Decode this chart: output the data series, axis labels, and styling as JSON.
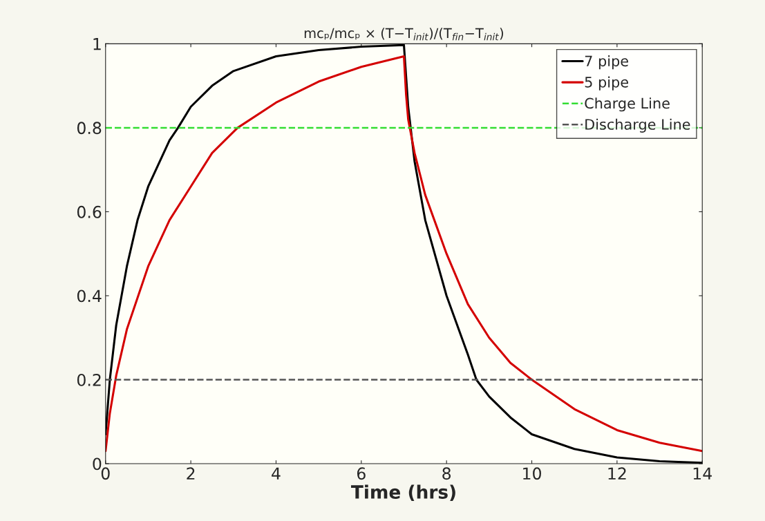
{
  "chart_data": {
    "type": "line",
    "title": "mcₚ/mcₚ × (T−T$_{init}$)/(T$_{fin}$−T$_{init}$)",
    "xlabel": "Time (hrs)",
    "series": [
      {
        "name": "7 pipe",
        "color": "#000000",
        "x": [
          0,
          0.1,
          0.25,
          0.5,
          0.75,
          1,
          1.5,
          1.7,
          2,
          2.5,
          3,
          4,
          5,
          6,
          7,
          7.1,
          7.25,
          7.5,
          8,
          8.5,
          8.7,
          9,
          9.5,
          10,
          11,
          12,
          13,
          14
        ],
        "values": [
          0.07,
          0.2,
          0.33,
          0.47,
          0.58,
          0.66,
          0.77,
          0.8,
          0.85,
          0.9,
          0.935,
          0.97,
          0.985,
          0.993,
          0.997,
          0.85,
          0.72,
          0.58,
          0.4,
          0.26,
          0.2,
          0.16,
          0.11,
          0.07,
          0.035,
          0.015,
          0.006,
          0.002
        ]
      },
      {
        "name": "5 pipe",
        "color": "#d40000",
        "x": [
          0,
          0.1,
          0.25,
          0.5,
          1,
          1.5,
          2,
          2.5,
          3,
          3.1,
          4,
          5,
          6,
          7,
          7.05,
          7.1,
          7.25,
          7.5,
          8,
          8.5,
          9,
          9.5,
          10,
          11,
          12,
          13,
          14
        ],
        "values": [
          0.03,
          0.12,
          0.21,
          0.32,
          0.47,
          0.58,
          0.66,
          0.74,
          0.79,
          0.8,
          0.86,
          0.91,
          0.945,
          0.97,
          0.88,
          0.82,
          0.74,
          0.64,
          0.5,
          0.38,
          0.3,
          0.24,
          0.2,
          0.13,
          0.08,
          0.05,
          0.03
        ]
      }
    ],
    "ref_lines": [
      {
        "axis": "y",
        "value": 0.8,
        "label": "Charge Line",
        "color": "#33dd33",
        "line_style": "dashed"
      },
      {
        "axis": "y",
        "value": 0.2,
        "label": "Discharge Line",
        "color": "#555555",
        "line_style": "dashed"
      }
    ],
    "xlim": [
      0,
      14
    ],
    "xticks": [
      0,
      2,
      4,
      6,
      8,
      10,
      12,
      14
    ],
    "ylim": [
      0,
      1
    ],
    "yticks": [
      0,
      0.2,
      0.4,
      0.6,
      0.8,
      1
    ],
    "grid": false,
    "legend": "top right",
    "line_style": "solid",
    "marker": "none"
  }
}
